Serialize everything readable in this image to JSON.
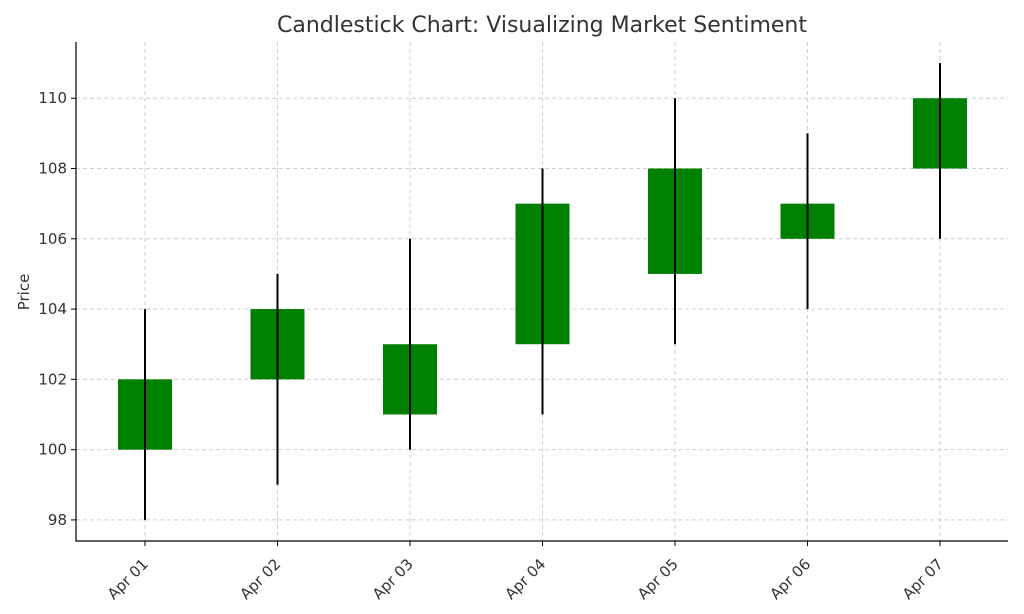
{
  "chart_data": {
    "type": "candlestick",
    "title": "Candlestick Chart: Visualizing Market Sentiment",
    "xlabel": "",
    "ylabel": "Price",
    "ylim": [
      97.4,
      111.6
    ],
    "yticks": [
      98,
      100,
      102,
      104,
      106,
      108,
      110
    ],
    "grid": true,
    "colors": {
      "up": "#008000",
      "wick": "#000000",
      "grid": "#cfcfcf"
    },
    "categories": [
      "Apr 01",
      "Apr 02",
      "Apr 03",
      "Apr 04",
      "Apr 05",
      "Apr 06",
      "Apr 07"
    ],
    "candles": [
      {
        "date": "Apr 01",
        "open": 100,
        "high": 104,
        "low": 98,
        "close": 102
      },
      {
        "date": "Apr 02",
        "open": 102,
        "high": 105,
        "low": 99,
        "close": 104
      },
      {
        "date": "Apr 03",
        "open": 101,
        "high": 106,
        "low": 100,
        "close": 103
      },
      {
        "date": "Apr 04",
        "open": 103,
        "high": 108,
        "low": 101,
        "close": 107
      },
      {
        "date": "Apr 05",
        "open": 105,
        "high": 110,
        "low": 103,
        "close": 108
      },
      {
        "date": "Apr 06",
        "open": 106,
        "high": 109,
        "low": 104,
        "close": 107
      },
      {
        "date": "Apr 07",
        "open": 108,
        "high": 111,
        "low": 106,
        "close": 110
      }
    ]
  }
}
